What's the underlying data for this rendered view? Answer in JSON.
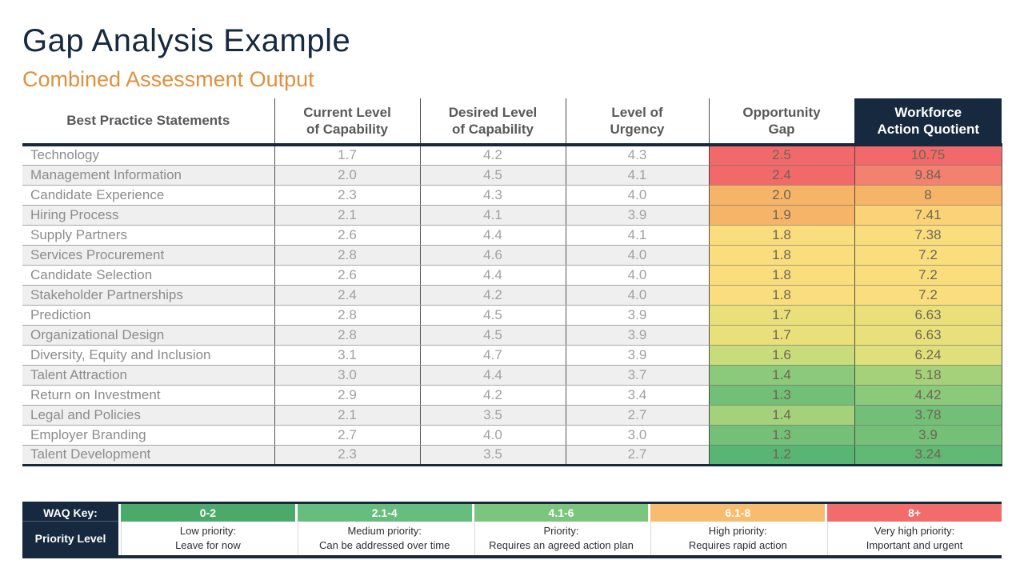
{
  "page": {
    "title": "Gap Analysis Example",
    "subtitle": "Combined Assessment Output"
  },
  "colors": {
    "navy": "#16293f",
    "subtitle_orange": "#e08f3e",
    "header_gray": "#595959",
    "row_alt_gray": "#efefef"
  },
  "table": {
    "headers": [
      "Best Practice Statements",
      "Current Level\nof Capability",
      "Desired Level\nof Capability",
      "Level of\nUrgency",
      "Opportunity\nGap",
      "Workforce\nAction Quotient"
    ],
    "rows": [
      {
        "name": "Technology",
        "current": "1.7",
        "desired": "4.2",
        "urgency": "4.3",
        "gap": "2.5",
        "gap_color": "#f2696c",
        "waq": "10.75",
        "waq_color": "#f2696c"
      },
      {
        "name": "Management Information",
        "current": "2.0",
        "desired": "4.5",
        "urgency": "4.1",
        "gap": "2.4",
        "gap_color": "#f2696c",
        "waq": "9.84",
        "waq_color": "#f4806f"
      },
      {
        "name": "Candidate Experience",
        "current": "2.3",
        "desired": "4.3",
        "urgency": "4.0",
        "gap": "2.0",
        "gap_color": "#f6b468",
        "waq": "8",
        "waq_color": "#f6b468"
      },
      {
        "name": "Hiring Process",
        "current": "2.1",
        "desired": "4.1",
        "urgency": "3.9",
        "gap": "1.9",
        "gap_color": "#f6b468",
        "waq": "7.41",
        "waq_color": "#fbd376"
      },
      {
        "name": "Supply Partners",
        "current": "2.6",
        "desired": "4.4",
        "urgency": "4.1",
        "gap": "1.8",
        "gap_color": "#fade7e",
        "waq": "7.38",
        "waq_color": "#fade7e"
      },
      {
        "name": "Services Procurement",
        "current": "2.8",
        "desired": "4.6",
        "urgency": "4.0",
        "gap": "1.8",
        "gap_color": "#fade7e",
        "waq": "7.2",
        "waq_color": "#fade7e"
      },
      {
        "name": "Candidate Selection",
        "current": "2.6",
        "desired": "4.4",
        "urgency": "4.0",
        "gap": "1.8",
        "gap_color": "#fade7e",
        "waq": "7.2",
        "waq_color": "#fade7e"
      },
      {
        "name": "Stakeholder Partnerships",
        "current": "2.4",
        "desired": "4.2",
        "urgency": "4.0",
        "gap": "1.8",
        "gap_color": "#fade7e",
        "waq": "7.2",
        "waq_color": "#fade7e"
      },
      {
        "name": "Prediction",
        "current": "2.8",
        "desired": "4.5",
        "urgency": "3.9",
        "gap": "1.7",
        "gap_color": "#eae07b",
        "waq": "6.63",
        "waq_color": "#eae07b"
      },
      {
        "name": "Organizational Design",
        "current": "2.8",
        "desired": "4.5",
        "urgency": "3.9",
        "gap": "1.7",
        "gap_color": "#eae07b",
        "waq": "6.63",
        "waq_color": "#eae07b"
      },
      {
        "name": "Diversity, Equity and Inclusion",
        "current": "3.1",
        "desired": "4.7",
        "urgency": "3.9",
        "gap": "1.6",
        "gap_color": "#c9dc7b",
        "waq": "6.24",
        "waq_color": "#dfe07b"
      },
      {
        "name": "Talent Attraction",
        "current": "3.0",
        "desired": "4.4",
        "urgency": "3.7",
        "gap": "1.4",
        "gap_color": "#8bc97b",
        "waq": "5.18",
        "waq_color": "#a6d17b"
      },
      {
        "name": "Return on Investment",
        "current": "2.9",
        "desired": "4.2",
        "urgency": "3.4",
        "gap": "1.3",
        "gap_color": "#72bf78",
        "waq": "4.42",
        "waq_color": "#8bc97b"
      },
      {
        "name": "Legal and Policies",
        "current": "2.1",
        "desired": "3.5",
        "urgency": "2.7",
        "gap": "1.4",
        "gap_color": "#a6d17b",
        "waq": "3.78",
        "waq_color": "#72bf78"
      },
      {
        "name": "Employer Branding",
        "current": "2.7",
        "desired": "4.0",
        "urgency": "3.0",
        "gap": "1.3",
        "gap_color": "#74c078",
        "waq": "3.9",
        "waq_color": "#74c078"
      },
      {
        "name": "Talent Development",
        "current": "2.3",
        "desired": "3.5",
        "urgency": "2.7",
        "gap": "1.2",
        "gap_color": "#58b573",
        "waq": "3.24",
        "waq_color": "#62b975"
      }
    ]
  },
  "key": {
    "waq_key_label": "WAQ Key:",
    "priority_level_label": "Priority Level",
    "bands": [
      {
        "range": "0-2",
        "color": "#4ba96a",
        "priority": "Low priority:\nLeave for now"
      },
      {
        "range": "2.1-4",
        "color": "#67bd7d",
        "priority": "Medium priority:\nCan be addressed over time"
      },
      {
        "range": "4.1-6",
        "color": "#7cc57e",
        "priority": "Priority:\nRequires an agreed action plan"
      },
      {
        "range": "6.1-8",
        "color": "#f7bc6d",
        "priority": "High priority:\nRequires rapid action"
      },
      {
        "range": "8+",
        "color": "#f26c6c",
        "priority": "Very high priority:\nImportant and urgent"
      }
    ]
  },
  "chart_data": {
    "type": "table",
    "title": "Gap Analysis Example",
    "subtitle": "Combined Assessment Output",
    "columns": [
      "Best Practice Statements",
      "Current Level of Capability",
      "Desired Level of Capability",
      "Level of Urgency",
      "Opportunity Gap",
      "Workforce Action Quotient"
    ],
    "rows": [
      [
        "Technology",
        1.7,
        4.2,
        4.3,
        2.5,
        10.75
      ],
      [
        "Management Information",
        2.0,
        4.5,
        4.1,
        2.4,
        9.84
      ],
      [
        "Candidate Experience",
        2.3,
        4.3,
        4.0,
        2.0,
        8
      ],
      [
        "Hiring Process",
        2.1,
        4.1,
        3.9,
        1.9,
        7.41
      ],
      [
        "Supply Partners",
        2.6,
        4.4,
        4.1,
        1.8,
        7.38
      ],
      [
        "Services Procurement",
        2.8,
        4.6,
        4.0,
        1.8,
        7.2
      ],
      [
        "Candidate Selection",
        2.6,
        4.4,
        4.0,
        1.8,
        7.2
      ],
      [
        "Stakeholder Partnerships",
        2.4,
        4.2,
        4.0,
        1.8,
        7.2
      ],
      [
        "Prediction",
        2.8,
        4.5,
        3.9,
        1.7,
        6.63
      ],
      [
        "Organizational Design",
        2.8,
        4.5,
        3.9,
        1.7,
        6.63
      ],
      [
        "Diversity, Equity and Inclusion",
        3.1,
        4.7,
        3.9,
        1.6,
        6.24
      ],
      [
        "Talent Attraction",
        3.0,
        4.4,
        3.7,
        1.4,
        5.18
      ],
      [
        "Return on Investment",
        2.9,
        4.2,
        3.4,
        1.3,
        4.42
      ],
      [
        "Legal and Policies",
        2.1,
        3.5,
        2.7,
        1.4,
        3.78
      ],
      [
        "Employer Branding",
        2.7,
        4.0,
        3.0,
        1.3,
        3.9
      ],
      [
        "Talent Development",
        2.3,
        3.5,
        2.7,
        1.2,
        3.24
      ]
    ],
    "waq_key": [
      {
        "range": "0-2",
        "meaning": "Low priority: Leave for now"
      },
      {
        "range": "2.1-4",
        "meaning": "Medium priority: Can be addressed over time"
      },
      {
        "range": "4.1-6",
        "meaning": "Priority: Requires an agreed action plan"
      },
      {
        "range": "6.1-8",
        "meaning": "High priority: Requires rapid action"
      },
      {
        "range": "8+",
        "meaning": "Very high priority: Important and urgent"
      }
    ],
    "layout": {
      "heatmap_columns": [
        "Opportunity Gap",
        "Workforce Action Quotient"
      ],
      "color_scale": "green(low) to red(high)"
    }
  }
}
